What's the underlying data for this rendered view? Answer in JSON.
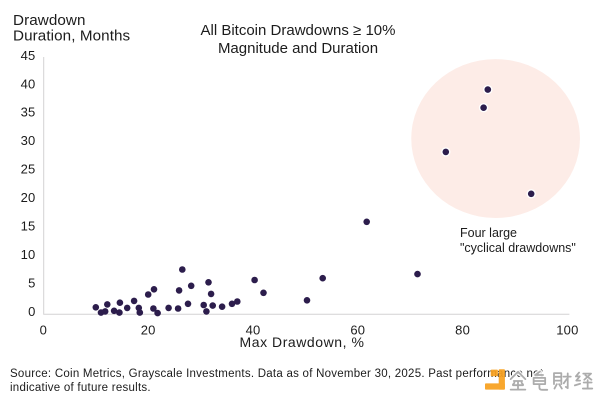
{
  "chart_data": {
    "type": "scatter",
    "title_line1": "All Bitcoin Drawdowns ≥ 10%",
    "title_line2": "Magnitude and Duration",
    "ylabel_line1": "Drawdown",
    "ylabel_line2": "Duration, Months",
    "xlabel": "Max Drawdown, %",
    "xlim": [
      0,
      100
    ],
    "ylim": [
      0,
      45
    ],
    "x_ticks": [
      0,
      20,
      40,
      60,
      80,
      100
    ],
    "y_ticks": [
      0,
      5,
      10,
      15,
      20,
      25,
      30,
      35,
      40,
      45
    ],
    "grid": false,
    "points": [
      {
        "x": 10.0,
        "y": 1.2
      },
      {
        "x": 11.0,
        "y": 0.3
      },
      {
        "x": 11.8,
        "y": 0.5
      },
      {
        "x": 12.2,
        "y": 1.7
      },
      {
        "x": 13.5,
        "y": 0.6
      },
      {
        "x": 14.6,
        "y": 2.0
      },
      {
        "x": 14.5,
        "y": 0.3
      },
      {
        "x": 16.0,
        "y": 1.1
      },
      {
        "x": 17.3,
        "y": 2.3
      },
      {
        "x": 18.2,
        "y": 1.1
      },
      {
        "x": 18.4,
        "y": 0.3
      },
      {
        "x": 20.0,
        "y": 3.4
      },
      {
        "x": 21.1,
        "y": 4.3
      },
      {
        "x": 21.0,
        "y": 1.0
      },
      {
        "x": 21.8,
        "y": 0.2
      },
      {
        "x": 23.9,
        "y": 1.1
      },
      {
        "x": 25.7,
        "y": 1.0
      },
      {
        "x": 25.9,
        "y": 4.1
      },
      {
        "x": 26.5,
        "y": 7.7
      },
      {
        "x": 27.6,
        "y": 1.8
      },
      {
        "x": 28.2,
        "y": 4.9
      },
      {
        "x": 30.6,
        "y": 1.6
      },
      {
        "x": 31.1,
        "y": 0.5
      },
      {
        "x": 31.5,
        "y": 5.5
      },
      {
        "x": 32.0,
        "y": 3.5
      },
      {
        "x": 32.3,
        "y": 1.5
      },
      {
        "x": 34.1,
        "y": 1.3
      },
      {
        "x": 36.0,
        "y": 1.8
      },
      {
        "x": 37.0,
        "y": 2.2
      },
      {
        "x": 40.3,
        "y": 5.9
      },
      {
        "x": 42.0,
        "y": 3.7
      },
      {
        "x": 50.3,
        "y": 2.4
      },
      {
        "x": 53.3,
        "y": 6.2
      },
      {
        "x": 61.7,
        "y": 15.9
      },
      {
        "x": 71.4,
        "y": 6.9
      },
      {
        "x": 76.8,
        "y": 27.9,
        "highlight": true
      },
      {
        "x": 84.0,
        "y": 35.5,
        "highlight": true
      },
      {
        "x": 84.8,
        "y": 38.6,
        "highlight": true
      },
      {
        "x": 93.1,
        "y": 20.7,
        "highlight": true
      }
    ],
    "highlight": {
      "circle_center": {
        "x": 86.3,
        "y": 30.2
      },
      "circle_radius_x_units": 16.1,
      "circle_radius_y_units": 13.65,
      "label_line1": "Four large",
      "label_line2": "\"cyclical drawdowns\"",
      "label_anchor": {
        "x": 79.6,
        "y": 13.1
      }
    },
    "colors": {
      "dot": "#2c1d4c",
      "highlight_circle_fill": "#fdece7",
      "axis_line": "#d4d2d4",
      "text": "#1c1c1c"
    },
    "legend": null
  },
  "footer": {
    "source_line1": "Source: Coin Metrics, Grayscale Investments. Data as of November 30, 2025. Past performance not",
    "source_line2": "indicative of future results."
  },
  "watermark": {
    "name": "金色财经",
    "logo_color": "#f8a11f",
    "text_color": "#9d9d9d"
  }
}
